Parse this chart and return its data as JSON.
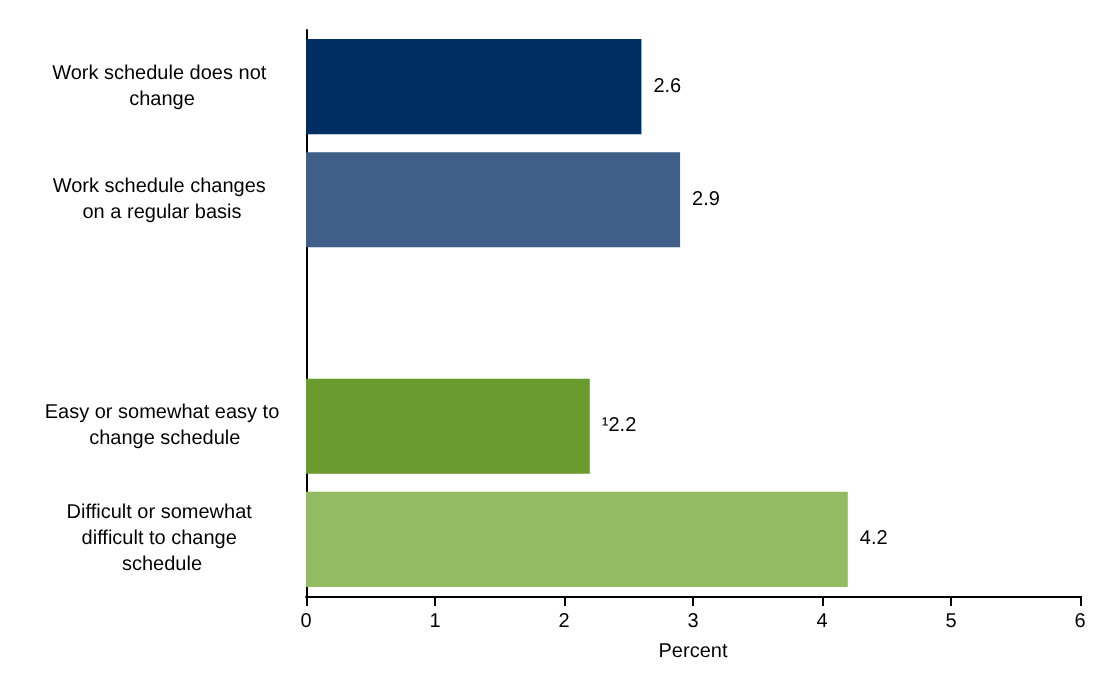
{
  "chart_data": {
    "type": "bar",
    "orientation": "horizontal",
    "categories": [
      "Work schedule does not change",
      "Work schedule changes on a regular basis",
      null,
      "Easy or somewhat easy to change schedule",
      "Difficult or somewhat difficult to change schedule"
    ],
    "values": [
      2.6,
      2.9,
      null,
      2.2,
      4.2
    ],
    "colors": [
      "#002d62",
      "#3f5f88",
      null,
      "#6a9b2e",
      "#93bb62"
    ],
    "value_labels": [
      "2.6",
      "2.9",
      null,
      "¹2.2",
      "4.2"
    ],
    "xlabel": "Percent",
    "xlim": [
      0,
      6
    ],
    "xticks": [
      0,
      1,
      2,
      3,
      4,
      5,
      6
    ],
    "grid": false
  }
}
